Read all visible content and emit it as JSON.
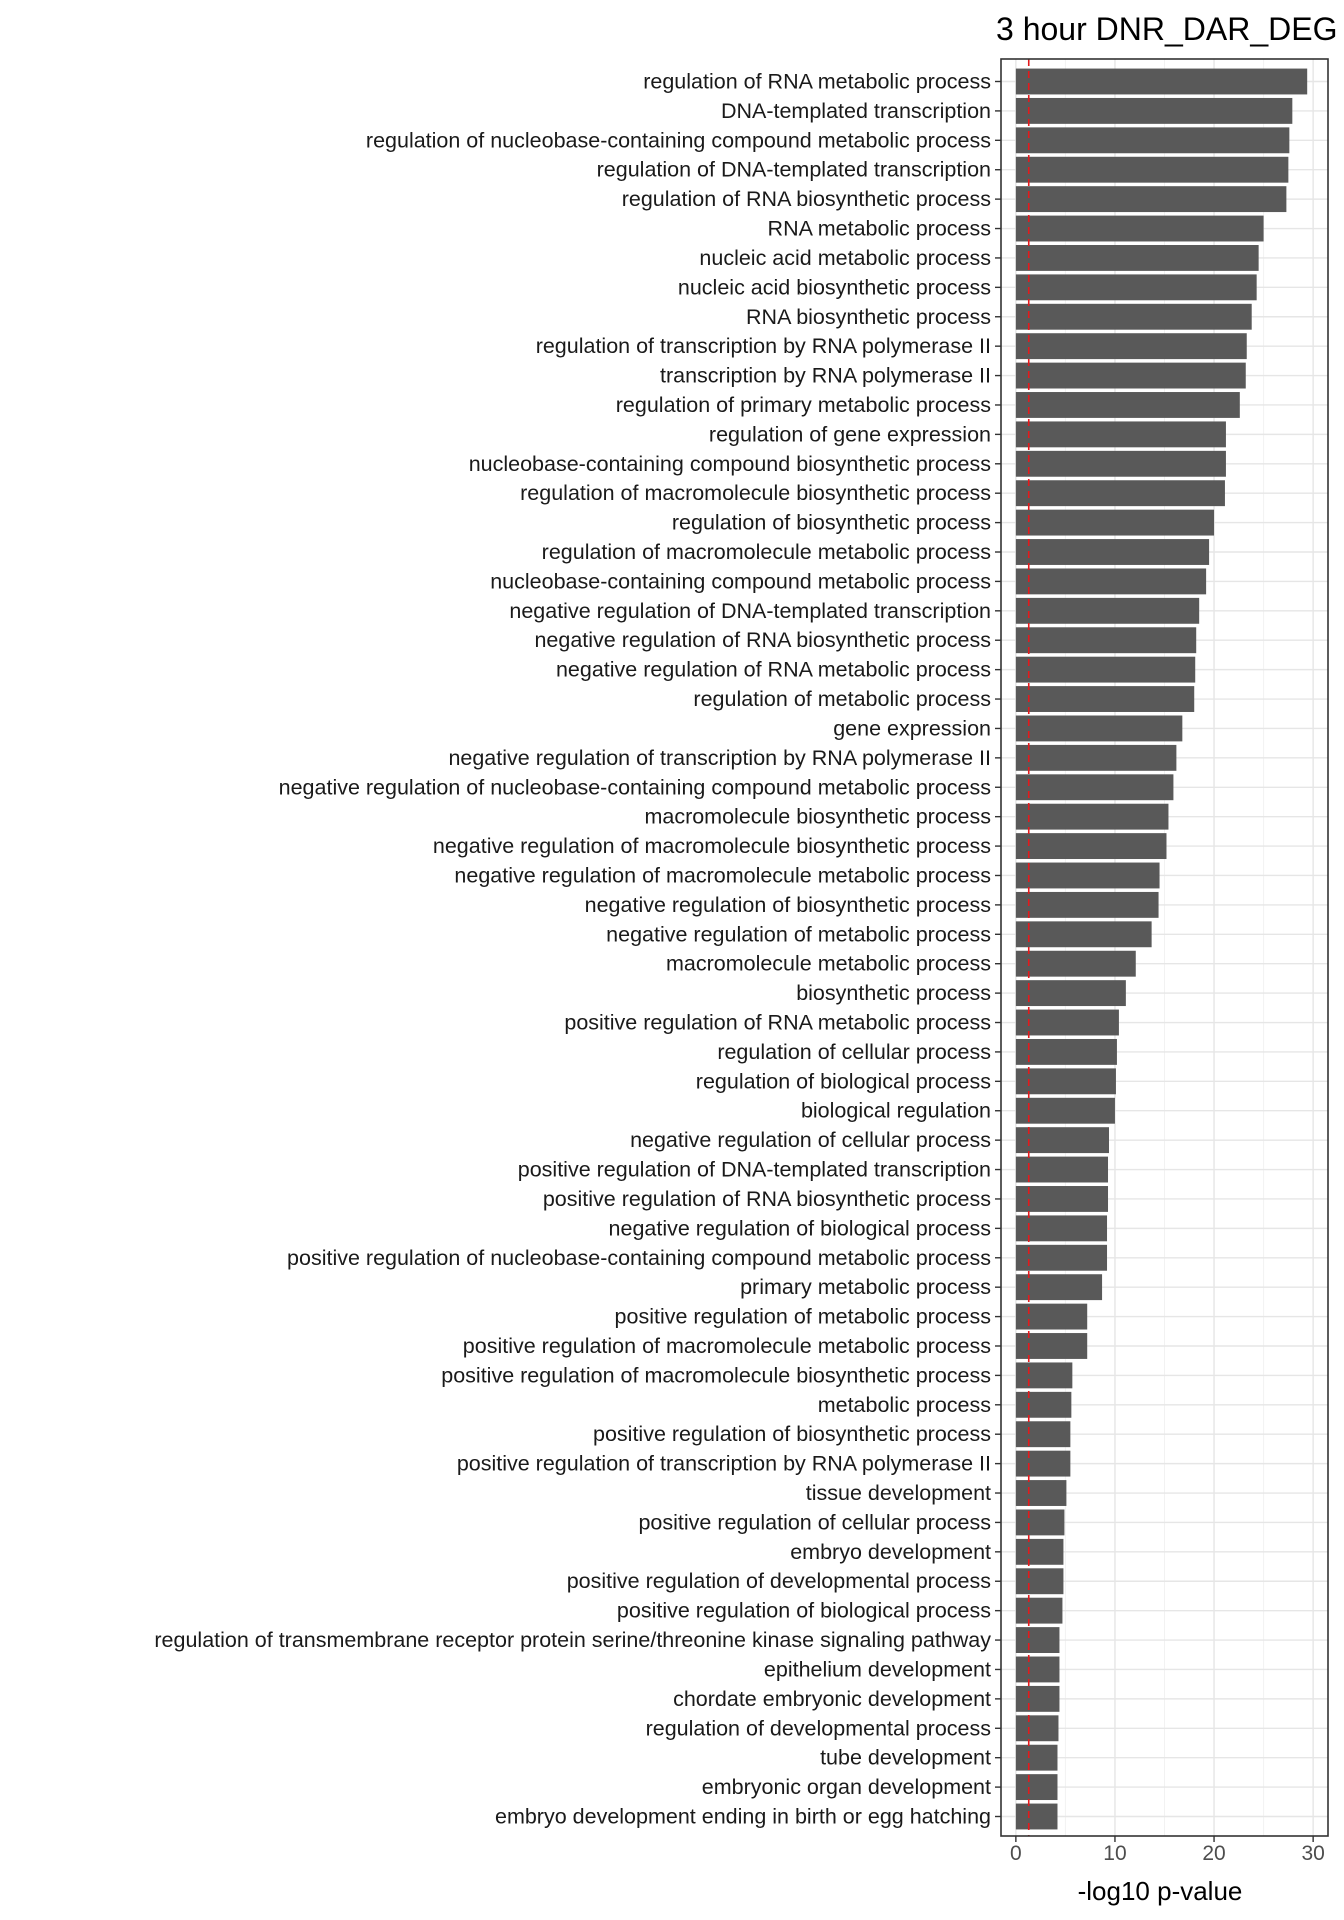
{
  "chart_data": {
    "type": "bar",
    "orientation": "horizontal",
    "title": "3 hour DNR_DAR_DEG",
    "xlabel": "-log10 p-value",
    "ylabel": "",
    "xlim": [
      -1.5,
      31.5
    ],
    "xticks": [
      0,
      10,
      20,
      30
    ],
    "grid": true,
    "threshold_line": {
      "value": 1.3,
      "style": "dashed",
      "color": "#e41a1c"
    },
    "bar_color": "#595959",
    "categories": [
      "regulation of RNA metabolic process",
      "DNA-templated transcription",
      "regulation of nucleobase-containing compound metabolic process",
      "regulation of DNA-templated transcription",
      "regulation of RNA biosynthetic process",
      "RNA metabolic process",
      "nucleic acid metabolic process",
      "nucleic acid biosynthetic process",
      "RNA biosynthetic process",
      "regulation of transcription by RNA polymerase II",
      "transcription by RNA polymerase II",
      "regulation of primary metabolic process",
      "regulation of gene expression",
      "nucleobase-containing compound biosynthetic process",
      "regulation of macromolecule biosynthetic process",
      "regulation of biosynthetic process",
      "regulation of macromolecule metabolic process",
      "nucleobase-containing compound metabolic process",
      "negative regulation of DNA-templated transcription",
      "negative regulation of RNA biosynthetic process",
      "negative regulation of RNA metabolic process",
      "regulation of metabolic process",
      "gene expression",
      "negative regulation of transcription by RNA polymerase II",
      "negative regulation of nucleobase-containing compound metabolic process",
      "macromolecule biosynthetic process",
      "negative regulation of macromolecule biosynthetic process",
      "negative regulation of macromolecule metabolic process",
      "negative regulation of biosynthetic process",
      "negative regulation of metabolic process",
      "macromolecule metabolic process",
      "biosynthetic process",
      "positive regulation of RNA metabolic process",
      "regulation of cellular process",
      "regulation of biological process",
      "biological regulation",
      "negative regulation of cellular process",
      "positive regulation of DNA-templated transcription",
      "positive regulation of RNA biosynthetic process",
      "negative regulation of biological process",
      "positive regulation of nucleobase-containing compound metabolic process",
      "primary metabolic process",
      "positive regulation of metabolic process",
      "positive regulation of macromolecule metabolic process",
      "positive regulation of macromolecule biosynthetic process",
      "metabolic process",
      "positive regulation of biosynthetic process",
      "positive regulation of transcription by RNA polymerase II",
      "tissue development",
      "positive regulation of cellular process",
      "embryo development",
      "positive regulation of developmental process",
      "positive regulation of biological process",
      "regulation of transmembrane receptor protein serine/threonine kinase signaling pathway",
      "epithelium development",
      "chordate embryonic development",
      "regulation of developmental process",
      "tube development",
      "embryonic organ development",
      "embryo development ending in birth or egg hatching"
    ],
    "values": [
      29.4,
      27.9,
      27.6,
      27.5,
      27.3,
      25.0,
      24.5,
      24.3,
      23.8,
      23.3,
      23.2,
      22.6,
      21.2,
      21.2,
      21.1,
      20.0,
      19.5,
      19.2,
      18.5,
      18.2,
      18.1,
      18.0,
      16.8,
      16.2,
      15.9,
      15.4,
      15.2,
      14.5,
      14.4,
      13.7,
      12.1,
      11.1,
      10.4,
      10.2,
      10.1,
      10.0,
      9.4,
      9.3,
      9.3,
      9.2,
      9.2,
      8.7,
      7.2,
      7.2,
      5.7,
      5.6,
      5.5,
      5.5,
      5.1,
      4.9,
      4.8,
      4.8,
      4.7,
      4.4,
      4.4,
      4.4,
      4.3,
      4.2,
      4.2,
      4.2
    ]
  }
}
